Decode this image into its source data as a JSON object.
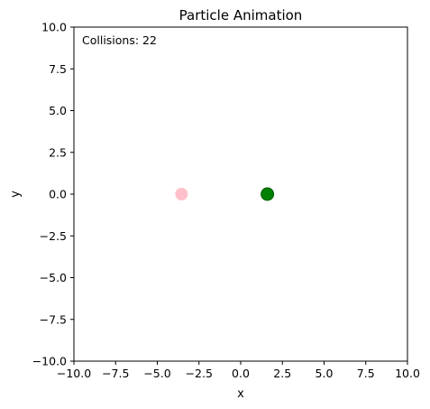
{
  "chart_data": {
    "type": "scatter",
    "title": "Particle Animation",
    "xlabel": "x",
    "ylabel": "y",
    "xlim": [
      -10,
      10
    ],
    "ylim": [
      -10,
      10
    ],
    "grid": false,
    "xticks": [
      -10,
      -7.5,
      -5,
      -2.5,
      0,
      2.5,
      5,
      7.5,
      10
    ],
    "xtick_labels": [
      "−10.0",
      "−7.5",
      "−5.0",
      "−2.5",
      "0.0",
      "2.5",
      "5.0",
      "7.5",
      "10.0"
    ],
    "yticks": [
      -10,
      -7.5,
      -5,
      -2.5,
      0,
      2.5,
      5,
      7.5,
      10
    ],
    "ytick_labels": [
      "−10.0",
      "−7.5",
      "−5.0",
      "−2.5",
      "0.0",
      "2.5",
      "5.0",
      "7.5",
      "10.0"
    ],
    "annotation": "Collisions: 22",
    "points": [
      {
        "x": -3.55,
        "y": 0.0,
        "color": "#ffc0cb"
      },
      {
        "x": 1.6,
        "y": 0.0,
        "color": "#008000"
      }
    ]
  }
}
